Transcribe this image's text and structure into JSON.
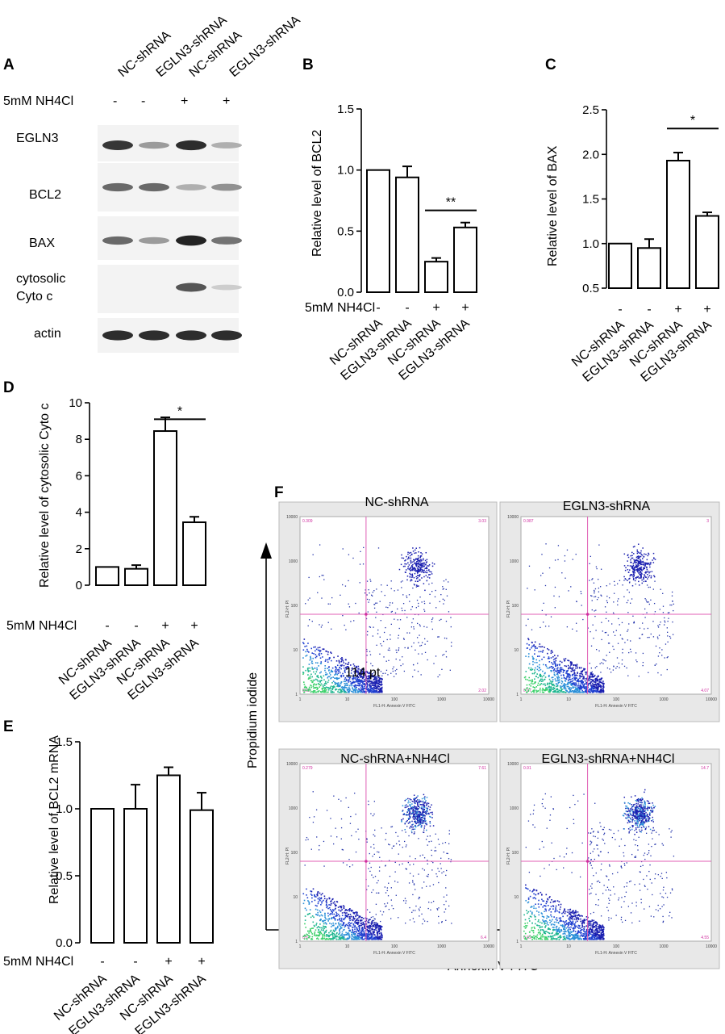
{
  "panel_letters": {
    "A": "A",
    "B": "B",
    "C": "C",
    "D": "D",
    "E": "E",
    "F": "F"
  },
  "panel_a": {
    "lane_headers": [
      "NC-shRNA",
      "EGLN3-shRNA",
      "NC-shRNA",
      "EGLN3-shRNA"
    ],
    "treatment_label": "5mM NH4Cl",
    "treatment_signs": [
      "-",
      "-",
      "+",
      "+"
    ],
    "blots": [
      {
        "label": "EGLN3",
        "intensity": [
          0.85,
          0.35,
          0.9,
          0.25
        ]
      },
      {
        "label": "BCL2",
        "intensity": [
          0.6,
          0.6,
          0.25,
          0.4
        ]
      },
      {
        "label": "BAX",
        "intensity": [
          0.6,
          0.35,
          0.95,
          0.55
        ]
      },
      {
        "label_line1": "cytosolic",
        "label_line2": "Cyto c",
        "intensity": [
          0.0,
          0.0,
          0.7,
          0.1
        ]
      },
      {
        "label": "actin",
        "intensity": [
          0.9,
          0.9,
          0.9,
          0.9
        ]
      }
    ]
  },
  "chart_data": [
    {
      "id": "B",
      "type": "bar",
      "categories": [
        "NC-shRNA",
        "EGLN3-shRNA",
        "NC-shRNA",
        "EGLN3-shRNA"
      ],
      "treatment_label": "5mM NH4Cl",
      "treatment_signs": [
        "-",
        "-",
        "+",
        "+"
      ],
      "values": [
        1.0,
        0.94,
        0.25,
        0.53
      ],
      "errors": [
        0.0,
        0.09,
        0.03,
        0.04
      ],
      "ylabel": "Relative level of  BCL2",
      "ylim": [
        0,
        1.5
      ],
      "yticks": [
        "0.0",
        "0.5",
        "1.0",
        "1.5"
      ],
      "significance": "**"
    },
    {
      "id": "C",
      "type": "bar",
      "categories": [
        "NC-shRNA",
        "EGLN3-shRNA",
        "NC-shRNA",
        "EGLN3-shRNA"
      ],
      "treatment_signs": [
        "-",
        "-",
        "+",
        "+"
      ],
      "values": [
        1.0,
        0.95,
        1.93,
        1.31
      ],
      "errors": [
        0.0,
        0.1,
        0.09,
        0.04
      ],
      "ylabel": "Relative level of  BAX",
      "ylim": [
        0.5,
        2.5
      ],
      "yticks": [
        "0.5",
        "1.0",
        "1.5",
        "2.0",
        "2.5"
      ],
      "significance": "*"
    },
    {
      "id": "D",
      "type": "bar",
      "categories": [
        "NC-shRNA",
        "EGLN3-shRNA",
        "NC-shRNA",
        "EGLN3-shRNA"
      ],
      "treatment_label": "5mM NH4Cl",
      "treatment_signs": [
        "-",
        "-",
        "+",
        "+"
      ],
      "values": [
        1.0,
        0.9,
        8.45,
        3.45
      ],
      "errors": [
        0.0,
        0.2,
        0.75,
        0.3
      ],
      "ylabel": "Relative level of  cytosolic Cyto c",
      "ylim": [
        0,
        10
      ],
      "yticks": [
        "0",
        "2",
        "4",
        "6",
        "8",
        "10"
      ],
      "significance": "*"
    },
    {
      "id": "E",
      "type": "bar",
      "categories": [
        "NC-shRNA",
        "EGLN3-shRNA",
        "NC-shRNA",
        "EGLN3-shRNA"
      ],
      "treatment_label": "5mM NH4Cl",
      "treatment_signs": [
        "-",
        "-",
        "+",
        "+"
      ],
      "values": [
        1.0,
        1.0,
        1.25,
        0.99
      ],
      "errors": [
        0.0,
        0.18,
        0.06,
        0.13
      ],
      "ylabel": "Relative level of  BCL2 mRNA",
      "ylim": [
        0,
        1.5
      ],
      "yticks": [
        "0.0",
        "0.5",
        "1.0",
        "1.5"
      ],
      "significance": ""
    },
    {
      "id": "F",
      "type": "scatter",
      "xlabel": "Annexin V-FITC",
      "ylabel": "Propidium iodide",
      "axis_ticks": [
        "1",
        "10",
        "100",
        "1000",
        "10000"
      ],
      "inner_xlabel": "FL1-H: Annexin V FITC",
      "inner_ylabel": "FL2-H: PI",
      "annotation": "114 pt",
      "plots": [
        {
          "title": "NC-shRNA",
          "quadrants": [
            "0.309",
            "3.03",
            "0.93",
            "2.02"
          ],
          "late_apoptotic_density": 0.3
        },
        {
          "title": "EGLN3-shRNA",
          "quadrants": [
            "0.987",
            "3",
            "0.97",
            "4.07"
          ],
          "late_apoptotic_density": 0.4
        },
        {
          "title": "NC-shRNA+NH4Cl",
          "quadrants": [
            "0.279",
            "7.61",
            "0.67",
            "6.4"
          ],
          "late_apoptotic_density": 0.8
        },
        {
          "title": "EGLN3-shRNA+NH4Cl",
          "quadrants": [
            "0.91",
            "14.7",
            "0.89",
            "4.55"
          ],
          "late_apoptotic_density": 1.0
        }
      ]
    }
  ]
}
